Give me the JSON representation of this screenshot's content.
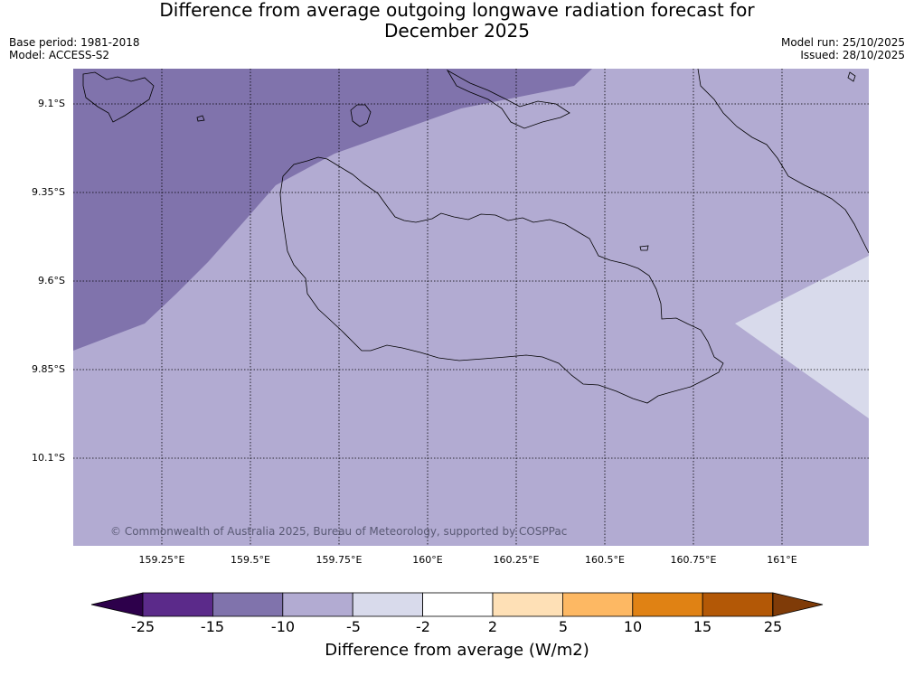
{
  "title_line1": "Difference from average outgoing longwave radiation forecast for",
  "title_line2": "December 2025",
  "meta": {
    "base_period": "Base period: 1981-2018",
    "model": "Model: ACCESS-S2",
    "model_run": "Model run: 25/10/2025",
    "issued": "Issued: 28/10/2025"
  },
  "axes": {
    "lat_labels": [
      "9.1°S",
      "9.35°S",
      "9.6°S",
      "9.85°S",
      "10.1°S"
    ],
    "lon_labels": [
      "159.25°E",
      "159.5°E",
      "159.75°E",
      "160°E",
      "160.25°E",
      "160.5°E",
      "160.75°E",
      "161°E"
    ]
  },
  "copyright": "© Commonwealth of Australia 2025, Bureau of Meteorology, supported by COSPPac",
  "colorbar": {
    "title": "Difference from average (W/m2)",
    "labels": [
      "-25",
      "-15",
      "-10",
      "-5",
      "-2",
      "2",
      "5",
      "10",
      "15",
      "25"
    ],
    "colors": [
      "#5b2a8a",
      "#8073ac",
      "#b2abd2",
      "#d8daeb",
      "#ffffff",
      "#fee0b6",
      "#fdb863",
      "#e08214",
      "#b35806"
    ],
    "under_color": "#2d004b",
    "over_color": "#7f3b08"
  },
  "field_colors": {
    "band_-15_-10": "#8073ac",
    "band_-10_-5": "#b2abd2",
    "band_-5_-2": "#d8daeb"
  }
}
